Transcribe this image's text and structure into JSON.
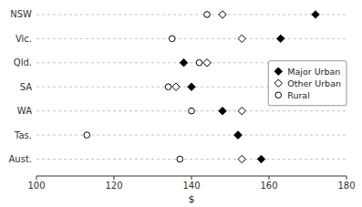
{
  "chart_data": {
    "type": "dot",
    "orientation": "horizontal",
    "categories": [
      "NSW",
      "Vic.",
      "Qld.",
      "SA",
      "WA",
      "Tas.",
      "Aust."
    ],
    "series": [
      {
        "name": "Major Urban",
        "color": "#000000",
        "marker": "diamond",
        "values": [
          172,
          163,
          138,
          140,
          148,
          152,
          158
        ]
      },
      {
        "name": "Other Urban",
        "color": "#000000",
        "marker": "diamond-open",
        "values": [
          148,
          153,
          144,
          136,
          153,
          152,
          153
        ]
      },
      {
        "name": "Rural",
        "color": "#000000",
        "marker": "circle-open",
        "values": [
          144,
          135,
          142,
          134,
          140,
          113,
          137
        ]
      }
    ],
    "xlabel": "$",
    "xlim": [
      100,
      180
    ],
    "xticks": [
      100,
      120,
      140,
      160,
      180
    ],
    "grid": true,
    "legend": "right"
  }
}
